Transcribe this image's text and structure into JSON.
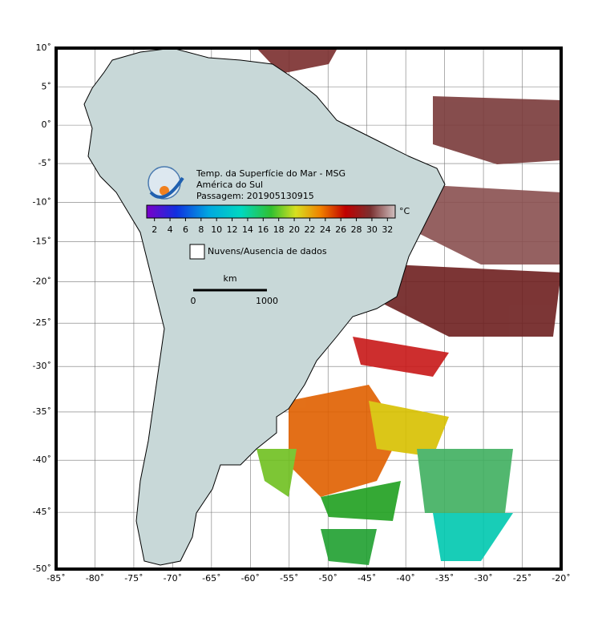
{
  "title_lines": [
    "Temp. da Superfície do Mar - MSG",
    "América do Sul",
    "Passagem: 201905130915"
  ],
  "map": {
    "xlim": [
      -85,
      -20
    ],
    "ylim": [
      -50,
      10
    ],
    "xticks": [
      {
        "value": -85,
        "label": "-85˚"
      },
      {
        "value": -80,
        "label": "-80˚"
      },
      {
        "value": -75,
        "label": "-75˚"
      },
      {
        "value": -70,
        "label": "-70˚"
      },
      {
        "value": -65,
        "label": "-65˚"
      },
      {
        "value": -60,
        "label": "-60˚"
      },
      {
        "value": -55,
        "label": "-55˚"
      },
      {
        "value": -50,
        "label": "-50˚"
      },
      {
        "value": -45,
        "label": "-45˚"
      },
      {
        "value": -40,
        "label": "-40˚"
      },
      {
        "value": -35,
        "label": "-35˚"
      },
      {
        "value": -30,
        "label": "-30˚"
      },
      {
        "value": -25,
        "label": "-25˚"
      },
      {
        "value": -20,
        "label": "-20˚"
      }
    ],
    "yticks": [
      {
        "value": 10,
        "label": "10˚"
      },
      {
        "value": 5,
        "label": "5˚"
      },
      {
        "value": 0,
        "label": "0˚"
      },
      {
        "value": -5,
        "label": "-5˚"
      },
      {
        "value": -10,
        "label": "-10˚"
      },
      {
        "value": -15,
        "label": "-15˚"
      },
      {
        "value": -20,
        "label": "-20˚"
      },
      {
        "value": -25,
        "label": "-25˚"
      },
      {
        "value": -30,
        "label": "-30˚"
      },
      {
        "value": -35,
        "label": "-35˚"
      },
      {
        "value": -40,
        "label": "-40˚"
      },
      {
        "value": -45,
        "label": "-45˚"
      },
      {
        "value": -50,
        "label": "-50˚"
      }
    ],
    "grid": true
  },
  "colorbar": {
    "range": [
      1,
      33
    ],
    "ticks": [
      2,
      4,
      6,
      8,
      10,
      12,
      14,
      16,
      18,
      20,
      22,
      24,
      26,
      28,
      30,
      32
    ],
    "unit": "°C"
  },
  "legend": {
    "label": "Nuvens/Ausencia de dados"
  },
  "scalebar": {
    "unit": "km",
    "start": "0",
    "end": "1000"
  }
}
